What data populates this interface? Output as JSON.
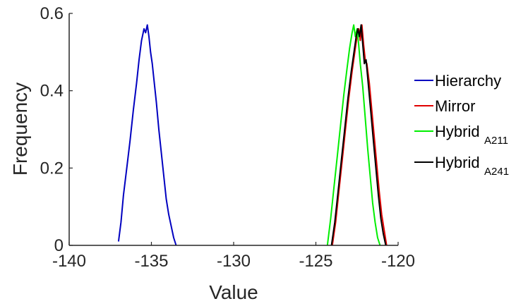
{
  "chart_data": {
    "type": "line",
    "xlabel": "Value",
    "ylabel": "Frequency",
    "xlim": [
      -140,
      -120
    ],
    "ylim": [
      0,
      0.6
    ],
    "xticks": [
      -140,
      -135,
      -130,
      -125,
      -120
    ],
    "yticks": [
      0,
      0.2,
      0.4,
      0.6
    ],
    "xtick_labels": [
      "-140",
      "-135",
      "-130",
      "-125",
      "-120"
    ],
    "ytick_labels": [
      "0",
      "0.2",
      "0.4",
      "0.6"
    ],
    "grid": false,
    "legend_position": "outside-right",
    "series": [
      {
        "name": "Hierarchy",
        "color": "#0000c0",
        "x": [
          -137.0,
          -136.85,
          -136.7,
          -136.5,
          -136.3,
          -136.1,
          -135.9,
          -135.75,
          -135.6,
          -135.45,
          -135.35,
          -135.25,
          -135.15,
          -135.05,
          -134.95,
          -134.85,
          -134.7,
          -134.55,
          -134.4,
          -134.25,
          -134.1,
          -133.95,
          -133.8,
          -133.65,
          -133.5
        ],
        "y": [
          0.01,
          0.06,
          0.13,
          0.2,
          0.27,
          0.35,
          0.42,
          0.48,
          0.53,
          0.56,
          0.55,
          0.57,
          0.54,
          0.5,
          0.47,
          0.43,
          0.37,
          0.3,
          0.24,
          0.18,
          0.12,
          0.08,
          0.05,
          0.02,
          0.0
        ]
      },
      {
        "name": "Mirror",
        "color": "#e00000",
        "x": [
          -124.0,
          -123.8,
          -123.6,
          -123.4,
          -123.2,
          -123.0,
          -122.8,
          -122.6,
          -122.5,
          -122.4,
          -122.3,
          -122.2,
          -122.1,
          -122.0,
          -121.9,
          -121.75,
          -121.6,
          -121.45,
          -121.3,
          -121.15,
          -121.0,
          -120.85,
          -120.7
        ],
        "y": [
          0.0,
          0.06,
          0.14,
          0.22,
          0.3,
          0.38,
          0.45,
          0.51,
          0.54,
          0.56,
          0.53,
          0.57,
          0.52,
          0.48,
          0.47,
          0.42,
          0.35,
          0.28,
          0.21,
          0.14,
          0.08,
          0.04,
          0.0
        ]
      },
      {
        "name": "Hybrid",
        "subscript": "A211",
        "color": "#00ee00",
        "x": [
          -124.3,
          -124.1,
          -123.9,
          -123.7,
          -123.5,
          -123.3,
          -123.1,
          -122.95,
          -122.8,
          -122.7,
          -122.6,
          -122.5,
          -122.4,
          -122.3,
          -122.15,
          -122.0,
          -121.85,
          -121.7,
          -121.55,
          -121.4,
          -121.25,
          -121.1
        ],
        "y": [
          0.0,
          0.07,
          0.15,
          0.23,
          0.31,
          0.39,
          0.46,
          0.51,
          0.55,
          0.57,
          0.54,
          0.56,
          0.52,
          0.47,
          0.41,
          0.33,
          0.25,
          0.18,
          0.11,
          0.06,
          0.02,
          0.0
        ]
      },
      {
        "name": "Hybrid",
        "subscript": "A241",
        "color": "#000000",
        "x": [
          -124.05,
          -123.85,
          -123.65,
          -123.45,
          -123.25,
          -123.05,
          -122.85,
          -122.65,
          -122.55,
          -122.45,
          -122.35,
          -122.25,
          -122.15,
          -122.05,
          -121.95,
          -121.8,
          -121.65,
          -121.5,
          -121.35,
          -121.2,
          -121.05,
          -120.9,
          -120.75
        ],
        "y": [
          0.0,
          0.06,
          0.14,
          0.22,
          0.3,
          0.38,
          0.45,
          0.51,
          0.54,
          0.56,
          0.54,
          0.57,
          0.52,
          0.47,
          0.48,
          0.41,
          0.34,
          0.27,
          0.2,
          0.13,
          0.07,
          0.03,
          0.0
        ]
      }
    ]
  }
}
